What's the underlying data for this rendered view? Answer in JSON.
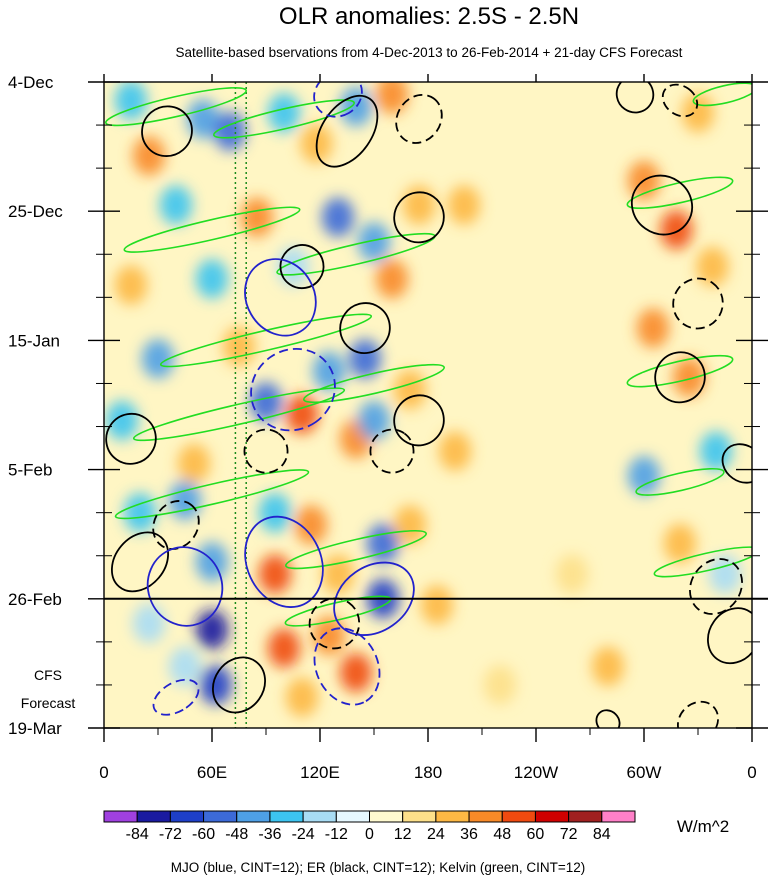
{
  "chart_data": {
    "type": "heatmap",
    "title": "OLR anomalies: 2.5S - 2.5N",
    "subtitle": "Satellite-based bservations from 4-Dec-2013 to 26-Feb-2014 + 21-day CFS Forecast",
    "x_tick_labels": [
      "0",
      "60E",
      "120E",
      "180",
      "120W",
      "60W",
      "0"
    ],
    "x_ticks_deg_east": [
      0,
      60,
      120,
      180,
      240,
      300,
      360
    ],
    "y_tick_labels": [
      "4-Dec",
      "25-Dec",
      "15-Jan",
      "5-Feb",
      "26-Feb",
      "19-Mar"
    ],
    "y_ticks_day": [
      0,
      21,
      42,
      63,
      84,
      105
    ],
    "x_range_deg_east": [
      0,
      360
    ],
    "time_range": [
      "4-Dec-2013",
      "19-Mar-2014"
    ],
    "observation_end": "26-Feb",
    "forecast_label": [
      "CFS",
      "Forecast"
    ],
    "colorbar": {
      "levels": [
        "-84",
        "-72",
        "-60",
        "-48",
        "-36",
        "-24",
        "-12",
        "0",
        "12",
        "24",
        "36",
        "48",
        "60",
        "72",
        "84"
      ],
      "colors": [
        "#a040e0",
        "#1a1aa0",
        "#1e3fc8",
        "#3c6ad8",
        "#4ea0e6",
        "#3cc4f0",
        "#a8dcf4",
        "#e6f8ff",
        "#fffad0",
        "#fde08a",
        "#fdb844",
        "#f88a28",
        "#f04a10",
        "#d00000",
        "#a02020",
        "#ff80c8"
      ],
      "units": "W/m^2"
    },
    "contour_legend": "MJO (blue, CINT=12); ER (black, CINT=12); Kelvin (green, CINT=12)",
    "contour_colors": {
      "MJO": "#2222cc",
      "ER": "#000000",
      "Kelvin": "#22dd22"
    },
    "anomaly_blobs": [
      {
        "lon": 15,
        "day": 3,
        "value": -36
      },
      {
        "lon": 55,
        "day": 6,
        "value": -48
      },
      {
        "lon": 70,
        "day": 8,
        "value": -60
      },
      {
        "lon": 25,
        "day": 12,
        "value": 36
      },
      {
        "lon": 100,
        "day": 5,
        "value": -36
      },
      {
        "lon": 118,
        "day": 10,
        "value": 24
      },
      {
        "lon": 140,
        "day": 4,
        "value": -48
      },
      {
        "lon": 160,
        "day": 2,
        "value": 36
      },
      {
        "lon": 40,
        "day": 20,
        "value": -36
      },
      {
        "lon": 85,
        "day": 22,
        "value": 36
      },
      {
        "lon": 130,
        "day": 22,
        "value": -60
      },
      {
        "lon": 150,
        "day": 26,
        "value": -48
      },
      {
        "lon": 175,
        "day": 20,
        "value": 24
      },
      {
        "lon": 15,
        "day": 33,
        "value": 24
      },
      {
        "lon": 60,
        "day": 32,
        "value": -36
      },
      {
        "lon": 105,
        "day": 30,
        "value": -24
      },
      {
        "lon": 160,
        "day": 32,
        "value": 36
      },
      {
        "lon": 30,
        "day": 45,
        "value": -48
      },
      {
        "lon": 75,
        "day": 43,
        "value": 24
      },
      {
        "lon": 125,
        "day": 47,
        "value": -48
      },
      {
        "lon": 145,
        "day": 45,
        "value": -60
      },
      {
        "lon": 170,
        "day": 50,
        "value": 24
      },
      {
        "lon": 10,
        "day": 55,
        "value": -36
      },
      {
        "lon": 90,
        "day": 52,
        "value": -60
      },
      {
        "lon": 110,
        "day": 54,
        "value": 48
      },
      {
        "lon": 140,
        "day": 58,
        "value": 36
      },
      {
        "lon": 150,
        "day": 55,
        "value": -48
      },
      {
        "lon": 50,
        "day": 62,
        "value": 24
      },
      {
        "lon": 20,
        "day": 70,
        "value": -36
      },
      {
        "lon": 45,
        "day": 68,
        "value": -48
      },
      {
        "lon": 95,
        "day": 70,
        "value": -36
      },
      {
        "lon": 115,
        "day": 72,
        "value": 36
      },
      {
        "lon": 155,
        "day": 75,
        "value": -60
      },
      {
        "lon": 170,
        "day": 72,
        "value": 24
      },
      {
        "lon": 60,
        "day": 78,
        "value": -48
      },
      {
        "lon": 95,
        "day": 80,
        "value": 48
      },
      {
        "lon": 130,
        "day": 80,
        "value": 24
      },
      {
        "lon": 155,
        "day": 84,
        "value": -72
      },
      {
        "lon": 60,
        "day": 89,
        "value": -84
      },
      {
        "lon": 62,
        "day": 98,
        "value": -72
      },
      {
        "lon": 45,
        "day": 95,
        "value": -24
      },
      {
        "lon": 100,
        "day": 92,
        "value": 48
      },
      {
        "lon": 125,
        "day": 90,
        "value": 36
      },
      {
        "lon": 140,
        "day": 96,
        "value": 48
      },
      {
        "lon": 110,
        "day": 100,
        "value": 24
      },
      {
        "lon": 25,
        "day": 88,
        "value": -24
      },
      {
        "lon": 330,
        "day": 5,
        "value": 24
      },
      {
        "lon": 300,
        "day": 16,
        "value": 36
      },
      {
        "lon": 318,
        "day": 24,
        "value": 48
      },
      {
        "lon": 338,
        "day": 30,
        "value": 24
      },
      {
        "lon": 305,
        "day": 40,
        "value": 36
      },
      {
        "lon": 325,
        "day": 48,
        "value": 36
      },
      {
        "lon": 300,
        "day": 64,
        "value": -48
      },
      {
        "lon": 340,
        "day": 60,
        "value": -36
      },
      {
        "lon": 320,
        "day": 75,
        "value": 24
      },
      {
        "lon": 345,
        "day": 80,
        "value": -24
      },
      {
        "lon": 200,
        "day": 20,
        "value": 24
      },
      {
        "lon": 195,
        "day": 60,
        "value": 24
      },
      {
        "lon": 260,
        "day": 80,
        "value": 12
      },
      {
        "lon": 280,
        "day": 95,
        "value": 24
      },
      {
        "lon": 220,
        "day": 98,
        "value": 12
      },
      {
        "lon": 185,
        "day": 85,
        "value": 24
      }
    ],
    "mjo_contours": [
      {
        "lon": 98,
        "day": 35,
        "rx": 22,
        "ry": 5.5,
        "deg": 60,
        "dash": false
      },
      {
        "lon": 105,
        "day": 50,
        "rx": 22,
        "ry": 7,
        "deg": 55,
        "dash": true
      },
      {
        "lon": 45,
        "day": 82,
        "rx": 22,
        "ry": 6,
        "deg": 70,
        "dash": false
      },
      {
        "lon": 100,
        "day": 78,
        "rx": 26,
        "ry": 6,
        "deg": 65,
        "dash": false
      },
      {
        "lon": 150,
        "day": 84,
        "rx": 18,
        "ry": 7,
        "deg": 55,
        "dash": false
      },
      {
        "lon": 40,
        "day": 100,
        "rx": 8,
        "ry": 4,
        "deg": 60,
        "dash": true
      },
      {
        "lon": 135,
        "day": 95,
        "rx": 22,
        "ry": 5,
        "deg": 65,
        "dash": true
      },
      {
        "lon": 130,
        "day": 2,
        "rx": 12,
        "ry": 4,
        "deg": 60,
        "dash": true
      }
    ],
    "er_contours": [
      {
        "lon": 135,
        "day": 8,
        "rx": 22,
        "ry": 4,
        "deg": -55,
        "dash": false
      },
      {
        "lon": 175,
        "day": 22,
        "rx": 14,
        "ry": 4,
        "deg": -55,
        "dash": false
      },
      {
        "lon": 35,
        "day": 8,
        "rx": 14,
        "ry": 4,
        "deg": -40,
        "dash": false
      },
      {
        "lon": 175,
        "day": 6,
        "rx": 14,
        "ry": 3.5,
        "deg": -55,
        "dash": true
      },
      {
        "lon": 110,
        "day": 30,
        "rx": 12,
        "ry": 3.5,
        "deg": -55,
        "dash": false
      },
      {
        "lon": 145,
        "day": 40,
        "rx": 14,
        "ry": 4,
        "deg": -55,
        "dash": false
      },
      {
        "lon": 175,
        "day": 55,
        "rx": 14,
        "ry": 4,
        "deg": -55,
        "dash": false
      },
      {
        "lon": 15,
        "day": 58,
        "rx": 14,
        "ry": 4,
        "deg": -55,
        "dash": false
      },
      {
        "lon": 20,
        "day": 78,
        "rx": 18,
        "ry": 4,
        "deg": -50,
        "dash": false
      },
      {
        "lon": 75,
        "day": 98,
        "rx": 16,
        "ry": 4,
        "deg": -55,
        "dash": false
      },
      {
        "lon": 40,
        "day": 72,
        "rx": 14,
        "ry": 3.5,
        "deg": -55,
        "dash": true
      },
      {
        "lon": 128,
        "day": 88,
        "rx": 14,
        "ry": 4,
        "deg": -55,
        "dash": true
      },
      {
        "lon": 90,
        "day": 60,
        "rx": 12,
        "ry": 3.5,
        "deg": -55,
        "dash": true
      },
      {
        "lon": 160,
        "day": 60,
        "rx": 12,
        "ry": 3.5,
        "deg": -55,
        "dash": true
      },
      {
        "lon": 310,
        "day": 20,
        "rx": 16,
        "ry": 5,
        "deg": -55,
        "dash": false
      },
      {
        "lon": 320,
        "day": 48,
        "rx": 14,
        "ry": 4,
        "deg": -55,
        "dash": false
      },
      {
        "lon": 330,
        "day": 36,
        "rx": 14,
        "ry": 4,
        "deg": -55,
        "dash": true
      },
      {
        "lon": 295,
        "day": 2,
        "rx": 10,
        "ry": 3,
        "deg": -55,
        "dash": false
      },
      {
        "lon": 320,
        "day": 3,
        "rx": 8,
        "ry": 3,
        "deg": -55,
        "dash": true
      },
      {
        "lon": 350,
        "day": 90,
        "rx": 16,
        "ry": 4,
        "deg": -55,
        "dash": false
      },
      {
        "lon": 340,
        "day": 82,
        "rx": 16,
        "ry": 4,
        "deg": -55,
        "dash": true
      },
      {
        "lon": 355,
        "day": 62,
        "rx": 10,
        "ry": 3.5,
        "deg": -55,
        "dash": false
      },
      {
        "lon": 330,
        "day": 104,
        "rx": 12,
        "ry": 3,
        "deg": -45,
        "dash": true
      },
      {
        "lon": 280,
        "day": 104,
        "rx": 6,
        "ry": 2,
        "deg": -45,
        "dash": false
      }
    ],
    "kelvin_contours": [
      {
        "lon": 40,
        "day": 4,
        "rx": 40,
        "ry": 1.6,
        "deg": -13
      },
      {
        "lon": 100,
        "day": 6,
        "rx": 40,
        "ry": 1.6,
        "deg": -13
      },
      {
        "lon": 60,
        "day": 24,
        "rx": 50,
        "ry": 1.6,
        "deg": -13
      },
      {
        "lon": 140,
        "day": 28,
        "rx": 45,
        "ry": 1.6,
        "deg": -13
      },
      {
        "lon": 90,
        "day": 42,
        "rx": 60,
        "ry": 1.6,
        "deg": -13
      },
      {
        "lon": 75,
        "day": 54,
        "rx": 60,
        "ry": 1.6,
        "deg": -13
      },
      {
        "lon": 150,
        "day": 49,
        "rx": 40,
        "ry": 1.6,
        "deg": -13
      },
      {
        "lon": 60,
        "day": 67,
        "rx": 55,
        "ry": 1.6,
        "deg": -13
      },
      {
        "lon": 140,
        "day": 76,
        "rx": 40,
        "ry": 1.6,
        "deg": -13
      },
      {
        "lon": 130,
        "day": 86,
        "rx": 30,
        "ry": 1.4,
        "deg": -13
      },
      {
        "lon": 320,
        "day": 18,
        "rx": 30,
        "ry": 1.6,
        "deg": -13
      },
      {
        "lon": 320,
        "day": 47,
        "rx": 30,
        "ry": 1.6,
        "deg": -13
      },
      {
        "lon": 320,
        "day": 65,
        "rx": 25,
        "ry": 1.4,
        "deg": -13
      },
      {
        "lon": 335,
        "day": 78,
        "rx": 30,
        "ry": 1.4,
        "deg": -13
      },
      {
        "lon": 345,
        "day": 2,
        "rx": 18,
        "ry": 1.4,
        "deg": -13
      }
    ],
    "reference_lines": [
      {
        "lon": 73,
        "color": "#1a8a1a",
        "dash": true
      },
      {
        "lon": 79,
        "color": "#1a8a1a",
        "dash": true
      }
    ]
  }
}
